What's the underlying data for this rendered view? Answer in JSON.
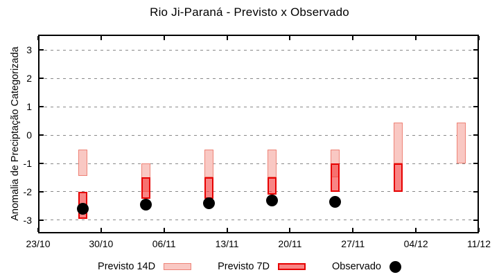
{
  "page": {
    "background": "#ffffff"
  },
  "chart_data": {
    "type": "bar",
    "subtype": "time-interval-range-bars",
    "title": "Rio Ji-Paraná - Previsto x Observado",
    "ylabel": "Anomalia de Preciptação Categorizada",
    "xlabel": "",
    "ylim": [
      -3.47,
      3.55
    ],
    "y_ticks": [
      3,
      2,
      1,
      0,
      -1,
      -2,
      -3
    ],
    "x_range_days": [
      0,
      49
    ],
    "x_ticks": [
      {
        "day": 0,
        "label": "23/10"
      },
      {
        "day": 7,
        "label": "30/10"
      },
      {
        "day": 14,
        "label": "06/11"
      },
      {
        "day": 21,
        "label": "13/11"
      },
      {
        "day": 28,
        "label": "20/11"
      },
      {
        "day": 35,
        "label": "27/11"
      },
      {
        "day": 42,
        "label": "04/12"
      },
      {
        "day": 49,
        "label": "11/12"
      }
    ],
    "grid": "horizontal-dashed",
    "legend_position": "bottom-center",
    "series": [
      {
        "name": "Previsto 14D",
        "kind": "range-bar",
        "fill": "#f9c8c3",
        "border": "#ee8276",
        "data": [
          {
            "day": 5,
            "date": "28/10",
            "hi": -0.5,
            "lo": -1.45
          },
          {
            "day": 12,
            "date": "04/11",
            "hi": -1.0,
            "lo": -2.0
          },
          {
            "day": 19,
            "date": "11/11",
            "hi": -0.5,
            "lo": -1.5
          },
          {
            "day": 26,
            "date": "18/11",
            "hi": -0.5,
            "lo": -1.5
          },
          {
            "day": 33,
            "date": "25/11",
            "hi": -0.5,
            "lo": -1.5
          },
          {
            "day": 40,
            "date": "02/12",
            "hi": 0.45,
            "lo": -1.0
          },
          {
            "day": 47,
            "date": "09/12",
            "hi": 0.45,
            "lo": -1.0
          }
        ]
      },
      {
        "name": "Previsto 7D",
        "kind": "range-bar",
        "fill": "rgba(244,62,62,0.63)",
        "border": "#e60000",
        "data": [
          {
            "day": 5,
            "date": "28/10",
            "hi": -2.0,
            "lo": -2.95
          },
          {
            "day": 12,
            "date": "04/11",
            "hi": -1.5,
            "lo": -2.25
          },
          {
            "day": 19,
            "date": "11/11",
            "hi": -1.5,
            "lo": -2.25
          },
          {
            "day": 26,
            "date": "18/11",
            "hi": -1.5,
            "lo": -2.1
          },
          {
            "day": 33,
            "date": "25/11",
            "hi": -1.0,
            "lo": -2.0
          },
          {
            "day": 40,
            "date": "02/12",
            "hi": -1.0,
            "lo": -2.0
          }
        ]
      },
      {
        "name": "Observado",
        "kind": "point",
        "color": "#000000",
        "data": [
          {
            "day": 5,
            "date": "28/10",
            "y": -2.6
          },
          {
            "day": 12,
            "date": "04/11",
            "y": -2.45
          },
          {
            "day": 19,
            "date": "11/11",
            "y": -2.4
          },
          {
            "day": 26,
            "date": "18/11",
            "y": -2.3
          },
          {
            "day": 33,
            "date": "25/11",
            "y": -2.35
          }
        ]
      }
    ]
  },
  "colors": {
    "grid": "#888888",
    "frame": "#000000",
    "previsto14d_fill": "#f9c8c3",
    "previsto14d_border": "#ee8276",
    "previsto7d_fill": "#fa7c7c",
    "previsto7d_border": "#e60000",
    "observado": "#000000"
  }
}
